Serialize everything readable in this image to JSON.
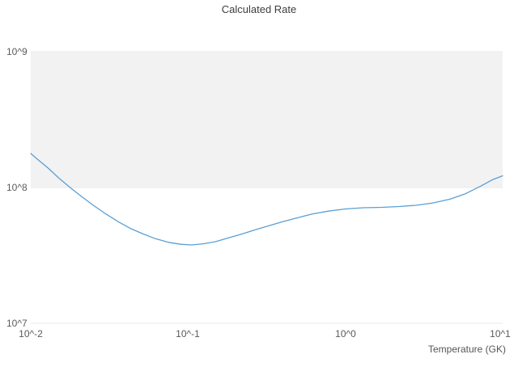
{
  "chart_data": {
    "type": "line",
    "title": "Calculated Rate",
    "xlabel": "Temperature (GK)",
    "ylabel": "",
    "x_scale": "log",
    "y_scale": "log",
    "xlim": [
      0.01,
      10
    ],
    "ylim": [
      10000000,
      1000000000
    ],
    "x_ticks": [
      "10^-2",
      "10^-1",
      "10^0",
      "10^1"
    ],
    "y_ticks": [
      "10^7",
      "10^8",
      "10^9"
    ],
    "grid": "decade band shading between 10^8 and 10^9",
    "legend": "none",
    "line_color": "#5b9fd4",
    "band_color": "#f2f2f2",
    "band_y_range": [
      100000000,
      1000000000
    ],
    "series": [
      {
        "name": "Calculated Rate",
        "x": [
          0.01,
          0.011,
          0.013,
          0.015,
          0.018,
          0.021,
          0.025,
          0.03,
          0.036,
          0.043,
          0.052,
          0.062,
          0.075,
          0.09,
          0.105,
          0.125,
          0.15,
          0.18,
          0.22,
          0.27,
          0.33,
          0.4,
          0.5,
          0.62,
          0.78,
          1.0,
          1.3,
          1.7,
          2.2,
          2.8,
          3.6,
          4.6,
          5.8,
          7.2,
          8.6,
          10.0
        ],
        "y": [
          178000000,
          162000000,
          138000000,
          118000000,
          99000000,
          86000000,
          74000000,
          64000000,
          56000000,
          50000000,
          45500000,
          42000000,
          39500000,
          38200000,
          37800000,
          38500000,
          40000000,
          42500000,
          45500000,
          49000000,
          52500000,
          56000000,
          60000000,
          64000000,
          67000000,
          69500000,
          71000000,
          71500000,
          72500000,
          74000000,
          77000000,
          82000000,
          90000000,
          102000000,
          114000000,
          122000000
        ]
      }
    ]
  }
}
